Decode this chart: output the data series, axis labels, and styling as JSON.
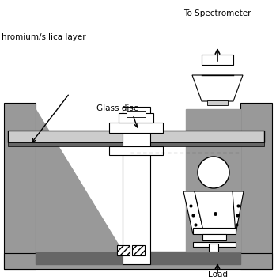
{
  "bg_color": "#ffffff",
  "gray_chamber": "#999999",
  "gray_fill": "#aaaaaa",
  "gray_dark_strip": "#666666",
  "gray_light": "#cccccc",
  "black": "#000000",
  "white": "#ffffff",
  "label_chromium": "hromium/silica layer",
  "label_glass": "Glass disc",
  "label_spectrometer": "To Spectrometer",
  "label_load": "Load",
  "figsize": [
    3.49,
    3.54
  ],
  "dpi": 100
}
